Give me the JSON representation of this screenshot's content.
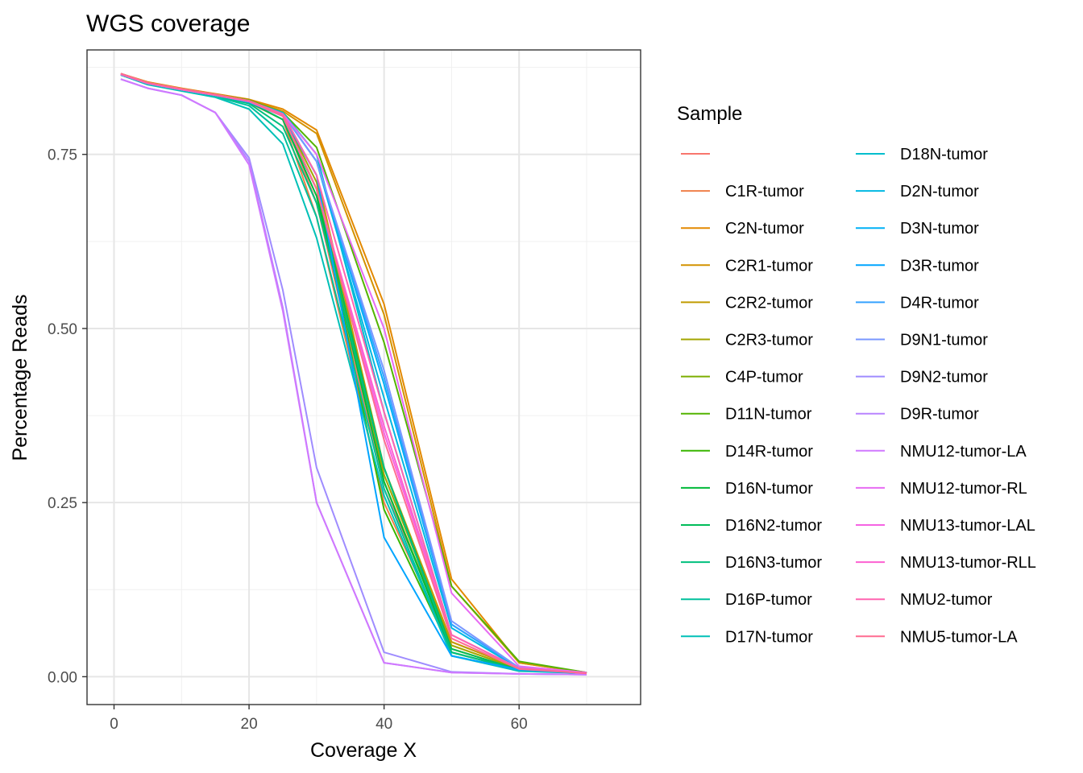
{
  "chart_data": {
    "type": "line",
    "title": "WGS coverage",
    "xlabel": "Coverage X",
    "ylabel": "Percentage Reads",
    "xlim": [
      -4,
      78
    ],
    "ylim": [
      -0.04,
      0.9
    ],
    "x_ticks": [
      0,
      20,
      40,
      60
    ],
    "x_tick_labels": [
      "0",
      "20",
      "40",
      "60"
    ],
    "y_ticks": [
      0,
      0.25,
      0.5,
      0.75
    ],
    "y_tick_labels": [
      "0.00",
      "0.25",
      "0.50",
      "0.75"
    ],
    "grid": true,
    "legend": {
      "title": "Sample",
      "position": "right",
      "columns": 2
    },
    "x": [
      1,
      5,
      10,
      15,
      20,
      25,
      30,
      40,
      50,
      60,
      70
    ],
    "series": [
      {
        "name": "",
        "color": "#F8766D",
        "values": [
          0.865,
          0.852,
          0.843,
          0.835,
          0.826,
          0.805,
          0.68,
          0.27,
          0.05,
          0.012,
          0.005
        ]
      },
      {
        "name": "C1R-tumor",
        "color": "#EF7F49",
        "values": [
          0.864,
          0.851,
          0.842,
          0.834,
          0.824,
          0.8,
          0.66,
          0.25,
          0.04,
          0.01,
          0.005
        ]
      },
      {
        "name": "C2N-tumor",
        "color": "#E38900",
        "values": [
          0.866,
          0.854,
          0.845,
          0.837,
          0.829,
          0.815,
          0.785,
          0.535,
          0.14,
          0.02,
          0.006
        ]
      },
      {
        "name": "C2R1-tumor",
        "color": "#D39200",
        "values": [
          0.866,
          0.853,
          0.844,
          0.836,
          0.828,
          0.812,
          0.78,
          0.52,
          0.13,
          0.02,
          0.006
        ]
      },
      {
        "name": "C2R2-tumor",
        "color": "#C09B00",
        "values": [
          0.865,
          0.852,
          0.843,
          0.835,
          0.826,
          0.808,
          0.72,
          0.3,
          0.05,
          0.012,
          0.005
        ]
      },
      {
        "name": "C2R3-tumor",
        "color": "#A3A500",
        "values": [
          0.865,
          0.852,
          0.843,
          0.835,
          0.826,
          0.807,
          0.71,
          0.29,
          0.045,
          0.011,
          0.005
        ]
      },
      {
        "name": "C4P-tumor",
        "color": "#7CAE00",
        "values": [
          0.865,
          0.852,
          0.843,
          0.835,
          0.826,
          0.806,
          0.7,
          0.28,
          0.04,
          0.01,
          0.005
        ]
      },
      {
        "name": "D11N-tumor",
        "color": "#53B400",
        "values": [
          0.866,
          0.853,
          0.844,
          0.836,
          0.828,
          0.81,
          0.76,
          0.48,
          0.13,
          0.022,
          0.006
        ]
      },
      {
        "name": "D14R-tumor",
        "color": "#39B600",
        "values": [
          0.865,
          0.852,
          0.843,
          0.835,
          0.826,
          0.806,
          0.7,
          0.24,
          0.035,
          0.01,
          0.005
        ]
      },
      {
        "name": "D16N-tumor",
        "color": "#00BA38",
        "values": [
          0.865,
          0.852,
          0.843,
          0.835,
          0.825,
          0.8,
          0.69,
          0.28,
          0.035,
          0.01,
          0.005
        ]
      },
      {
        "name": "D16N2-tumor",
        "color": "#00BC59",
        "values": [
          0.865,
          0.852,
          0.843,
          0.835,
          0.825,
          0.8,
          0.7,
          0.3,
          0.04,
          0.01,
          0.005
        ]
      },
      {
        "name": "D16N3-tumor",
        "color": "#00BF7D",
        "values": [
          0.865,
          0.852,
          0.843,
          0.834,
          0.823,
          0.79,
          0.68,
          0.3,
          0.035,
          0.01,
          0.005
        ]
      },
      {
        "name": "D16P-tumor",
        "color": "#00C09B",
        "values": [
          0.864,
          0.851,
          0.842,
          0.833,
          0.82,
          0.78,
          0.66,
          0.27,
          0.03,
          0.01,
          0.005
        ]
      },
      {
        "name": "D17N-tumor",
        "color": "#00C0B7",
        "values": [
          0.864,
          0.85,
          0.841,
          0.832,
          0.815,
          0.765,
          0.63,
          0.26,
          0.03,
          0.008,
          0.005
        ]
      },
      {
        "name": "D18N-tumor",
        "color": "#00BECD",
        "values": [
          0.865,
          0.852,
          0.843,
          0.835,
          0.826,
          0.81,
          0.75,
          0.38,
          0.06,
          0.012,
          0.005
        ]
      },
      {
        "name": "D2N-tumor",
        "color": "#00B8E2",
        "values": [
          0.865,
          0.852,
          0.843,
          0.835,
          0.826,
          0.808,
          0.74,
          0.4,
          0.07,
          0.012,
          0.005
        ]
      },
      {
        "name": "D3N-tumor",
        "color": "#00B0F6",
        "values": [
          0.865,
          0.852,
          0.843,
          0.835,
          0.826,
          0.808,
          0.74,
          0.42,
          0.075,
          0.013,
          0.005
        ]
      },
      {
        "name": "D3R-tumor",
        "color": "#00A5FF",
        "values": [
          0.865,
          0.852,
          0.843,
          0.835,
          0.825,
          0.805,
          0.72,
          0.2,
          0.03,
          0.01,
          0.005
        ]
      },
      {
        "name": "D4R-tumor",
        "color": "#35A2FF",
        "values": [
          0.865,
          0.852,
          0.843,
          0.835,
          0.826,
          0.808,
          0.74,
          0.43,
          0.075,
          0.013,
          0.005
        ]
      },
      {
        "name": "D9N1-tumor",
        "color": "#7997FF",
        "values": [
          0.865,
          0.852,
          0.843,
          0.835,
          0.826,
          0.808,
          0.74,
          0.44,
          0.08,
          0.013,
          0.005
        ]
      },
      {
        "name": "D9N2-tumor",
        "color": "#9F8CFF",
        "values": [
          0.858,
          0.845,
          0.835,
          0.81,
          0.745,
          0.555,
          0.3,
          0.035,
          0.007,
          0.004,
          0.003
        ]
      },
      {
        "name": "D9R-tumor",
        "color": "#B983FF",
        "values": [
          0.858,
          0.845,
          0.835,
          0.81,
          0.74,
          0.53,
          0.25,
          0.02,
          0.006,
          0.004,
          0.003
        ]
      },
      {
        "name": "NMU12-tumor-LA",
        "color": "#D078FF",
        "values": [
          0.858,
          0.845,
          0.835,
          0.81,
          0.735,
          0.525,
          0.25,
          0.02,
          0.006,
          0.004,
          0.003
        ]
      },
      {
        "name": "NMU12-tumor-RL",
        "color": "#E76BF3",
        "values": [
          0.865,
          0.852,
          0.843,
          0.835,
          0.826,
          0.808,
          0.75,
          0.5,
          0.12,
          0.015,
          0.006
        ]
      },
      {
        "name": "NMU13-tumor-LAL",
        "color": "#F564E3",
        "values": [
          0.865,
          0.852,
          0.843,
          0.835,
          0.826,
          0.805,
          0.7,
          0.35,
          0.06,
          0.012,
          0.005
        ]
      },
      {
        "name": "NMU13-tumor-RLL",
        "color": "#FD61D1",
        "values": [
          0.865,
          0.852,
          0.843,
          0.835,
          0.826,
          0.805,
          0.7,
          0.36,
          0.06,
          0.012,
          0.005
        ]
      },
      {
        "name": "NMU2-tumor",
        "color": "#FF64B0",
        "values": [
          0.866,
          0.853,
          0.844,
          0.836,
          0.827,
          0.808,
          0.72,
          0.38,
          0.06,
          0.012,
          0.005
        ]
      },
      {
        "name": "NMU5-tumor-LA",
        "color": "#FF6C91",
        "values": [
          0.866,
          0.853,
          0.844,
          0.836,
          0.827,
          0.805,
          0.7,
          0.34,
          0.055,
          0.011,
          0.005
        ]
      }
    ]
  }
}
